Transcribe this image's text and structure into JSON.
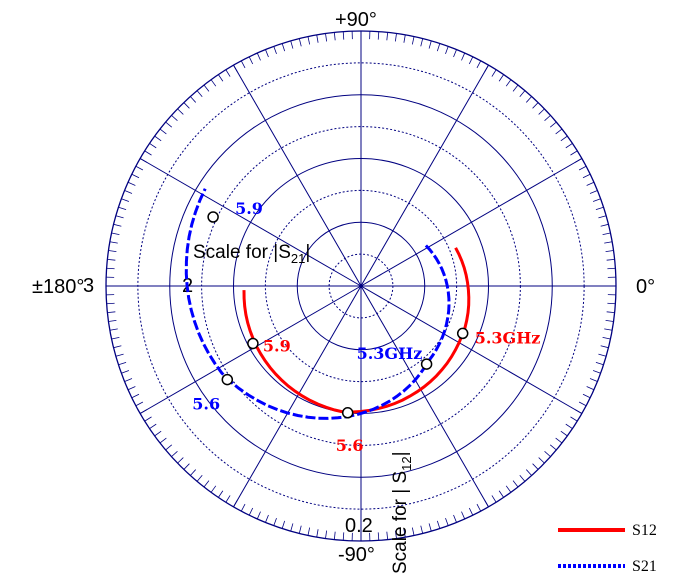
{
  "chart_data": {
    "type": "polar",
    "angular_labels": {
      "top": "+90°",
      "left": "±180°",
      "right": "0°",
      "bottom": "-90°"
    },
    "radial_labels": {
      "r3": "3",
      "r2": "2",
      "r02": "0.2"
    },
    "scale_labels": {
      "s21": "Scale for |S21|",
      "s12": "Scale for | S12|"
    },
    "grid": {
      "rings": 8,
      "spokes_deg": 30
    },
    "series": [
      {
        "name": "S12",
        "color": "#ff0000",
        "style": "solid",
        "markers": [
          {
            "label": "5.3GHz",
            "angle_deg": -25,
            "r_frac": 0.44
          },
          {
            "label": "5.9",
            "angle_deg": -152,
            "r_frac": 0.48
          },
          {
            "label": "5.6",
            "angle_deg": -96,
            "r_frac": 0.5
          }
        ]
      },
      {
        "name": "S21",
        "color": "#0000ff",
        "style": "dotted",
        "markers": [
          {
            "label": "5.3GHz",
            "angle_deg": -50,
            "r_frac": 0.4
          },
          {
            "label": "5.9",
            "angle_deg": 155,
            "r_frac": 0.64
          },
          {
            "label": "5.6",
            "angle_deg": -145,
            "r_frac": 0.64
          }
        ]
      }
    ],
    "legend": {
      "placement": "bottom-right",
      "entries": [
        "S12",
        "S21"
      ]
    }
  },
  "colors": {
    "grid": "#000080",
    "s12": "#ff0000",
    "s21": "#0000ff"
  }
}
